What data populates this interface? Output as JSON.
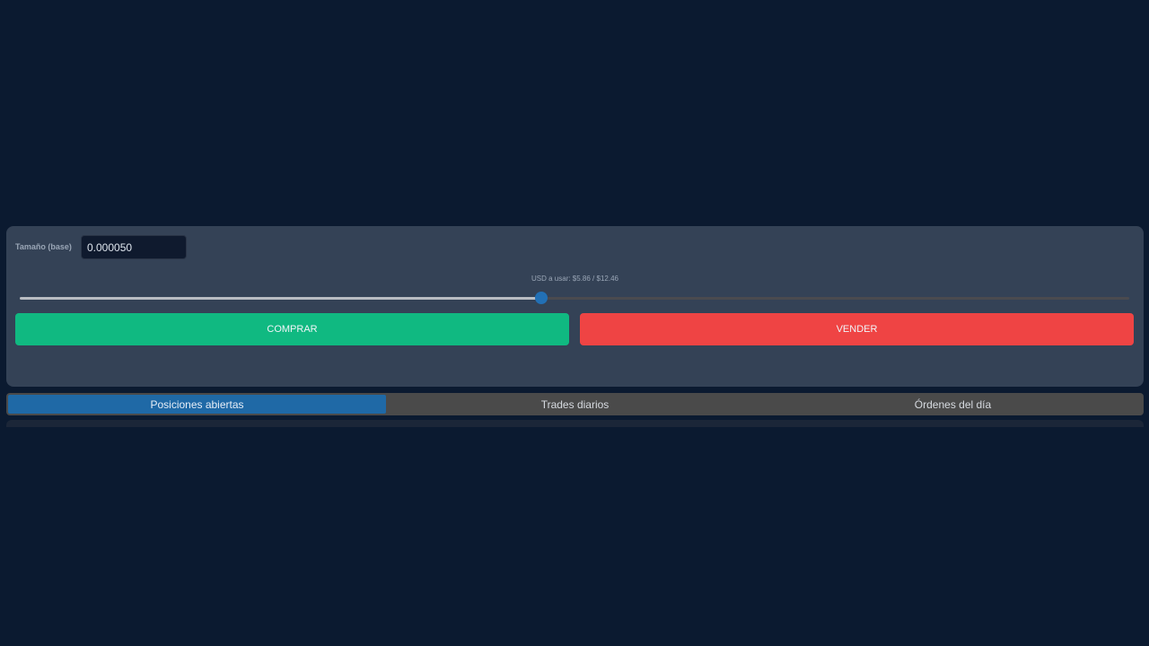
{
  "order_form": {
    "size_label": "Tamaño (base)",
    "size_value": "0.000050",
    "usd_label": "USD a usar: $5.86 / $12.46",
    "slider_fraction": 0.47,
    "buy_label": "COMPRAR",
    "sell_label": "VENDER",
    "colors": {
      "buy": "#10b981",
      "sell": "#ef4444",
      "accent": "#2270b5"
    }
  },
  "tabs": [
    {
      "label": "Posiciones abiertas",
      "active": true
    },
    {
      "label": "Trades diarios",
      "active": false
    },
    {
      "label": "Órdenes del día",
      "active": false
    }
  ]
}
